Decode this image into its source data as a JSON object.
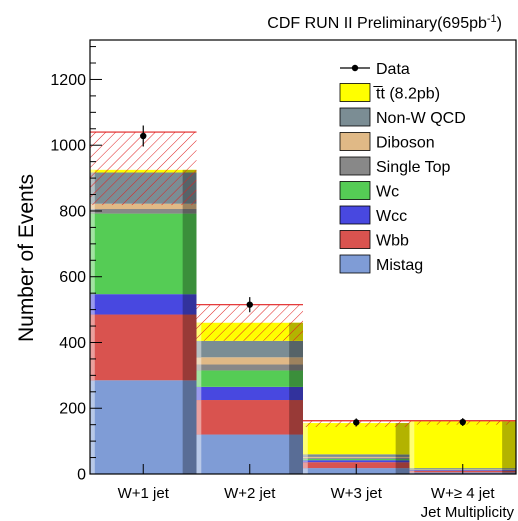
{
  "chart_data": {
    "type": "bar",
    "title": "CDF RUN II Preliminary(695pb",
    "title_sup": "-1",
    "title_close": ")",
    "xlabel": "Jet Multiplicity",
    "ylabel": "Number of Events",
    "categories": [
      "W+1 jet",
      "W+2 jet",
      "W+3 jet",
      "W+≥ 4 jet"
    ],
    "ylim": [
      0,
      1320
    ],
    "yticks": [
      0,
      200,
      400,
      600,
      800,
      1000,
      1200
    ],
    "stacked": true,
    "legend_position": "top-right",
    "series": [
      {
        "name": "Mistag",
        "color": "#7f9cd6",
        "values": [
          285,
          120,
          18,
          5
        ]
      },
      {
        "name": "Wbb",
        "color": "#d9534f",
        "values": [
          200,
          105,
          18,
          5
        ]
      },
      {
        "name": "Wcc",
        "color": "#4848e0",
        "values": [
          62,
          40,
          6,
          2
        ]
      },
      {
        "name": "Wc",
        "color": "#55cc55",
        "values": [
          245,
          50,
          4,
          1
        ]
      },
      {
        "name": "Single Top",
        "color": "#888888",
        "values": [
          14,
          18,
          3,
          1
        ]
      },
      {
        "name": "Diboson",
        "color": "#e0b986",
        "values": [
          16,
          22,
          3,
          1
        ]
      },
      {
        "name": "Non-W QCD",
        "color": "#7b8d94",
        "values": [
          95,
          50,
          8,
          3
        ]
      },
      {
        "name": "t̅t (8.2pb)",
        "color": "#ffff00",
        "values": [
          8,
          55,
          95,
          142
        ]
      }
    ],
    "uncertainty_band": {
      "low": [
        818,
        405,
        143,
        150
      ],
      "high": [
        1040,
        515,
        162,
        162
      ]
    },
    "data_points": {
      "name": "Data",
      "values": [
        1028,
        515,
        157,
        158
      ],
      "errors": [
        32,
        23,
        12,
        12
      ]
    },
    "legend_order": [
      "Data",
      "t̅t (8.2pb)",
      "Non-W QCD",
      "Diboson",
      "Single Top",
      "Wc",
      "Wcc",
      "Wbb",
      "Mistag"
    ]
  }
}
